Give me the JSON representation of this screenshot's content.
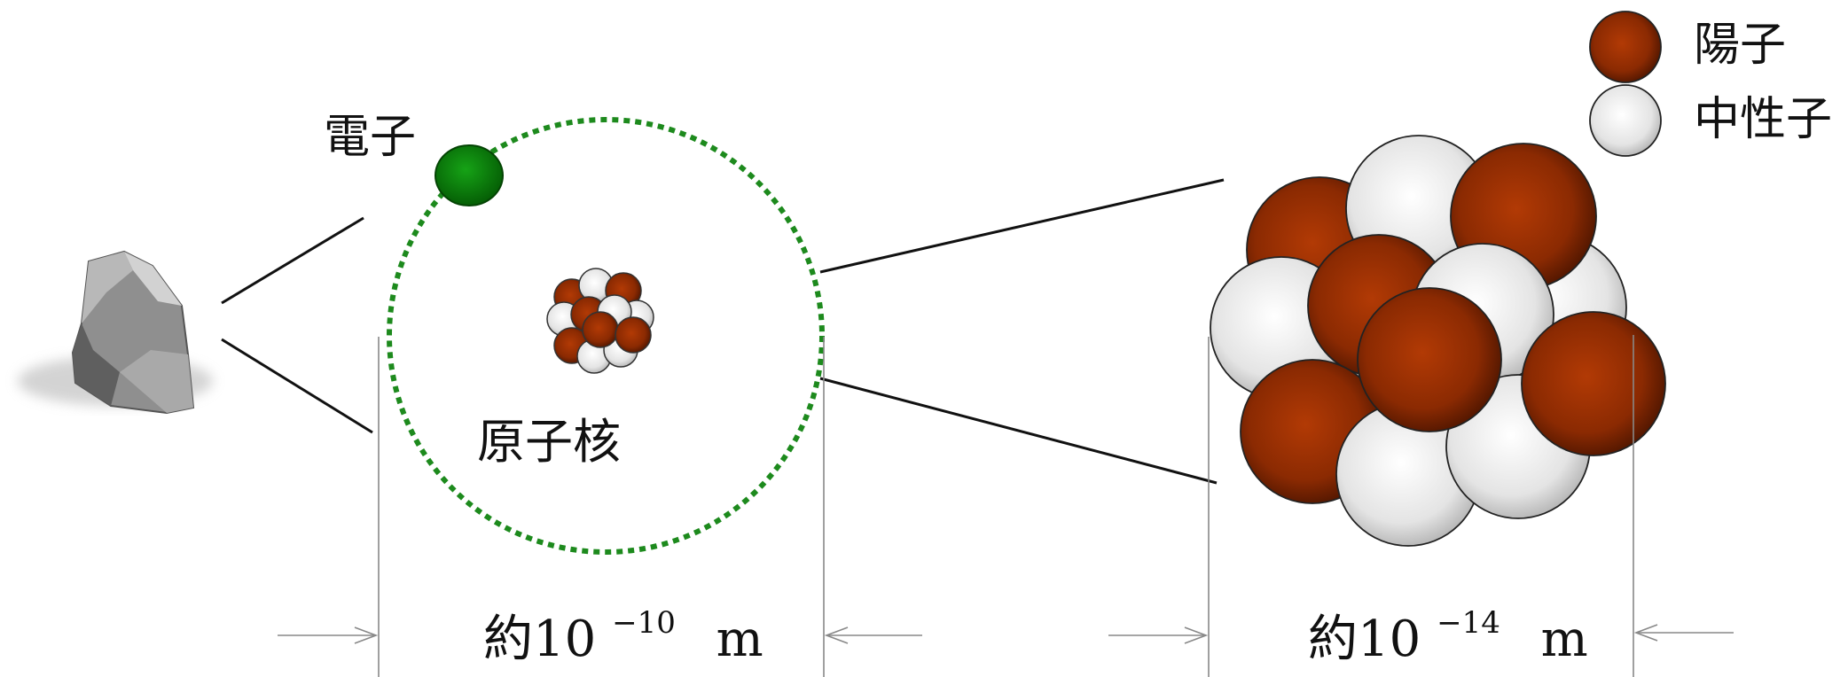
{
  "labels": {
    "electron": "電子",
    "nucleus": "原子核",
    "proton": "陽子",
    "neutron": "中性子"
  },
  "atom_size": {
    "prefix": "約10",
    "exponent": "−10",
    "unit": "m"
  },
  "nucleus_size": {
    "prefix": "約10",
    "exponent": "−14",
    "unit": "m"
  },
  "colors": {
    "proton": "#8b2a02",
    "neutron": "#e6e6e6",
    "electron": "#0a7a0a",
    "orbit": "#1d8a1d",
    "rock": "#9a9a9a"
  }
}
